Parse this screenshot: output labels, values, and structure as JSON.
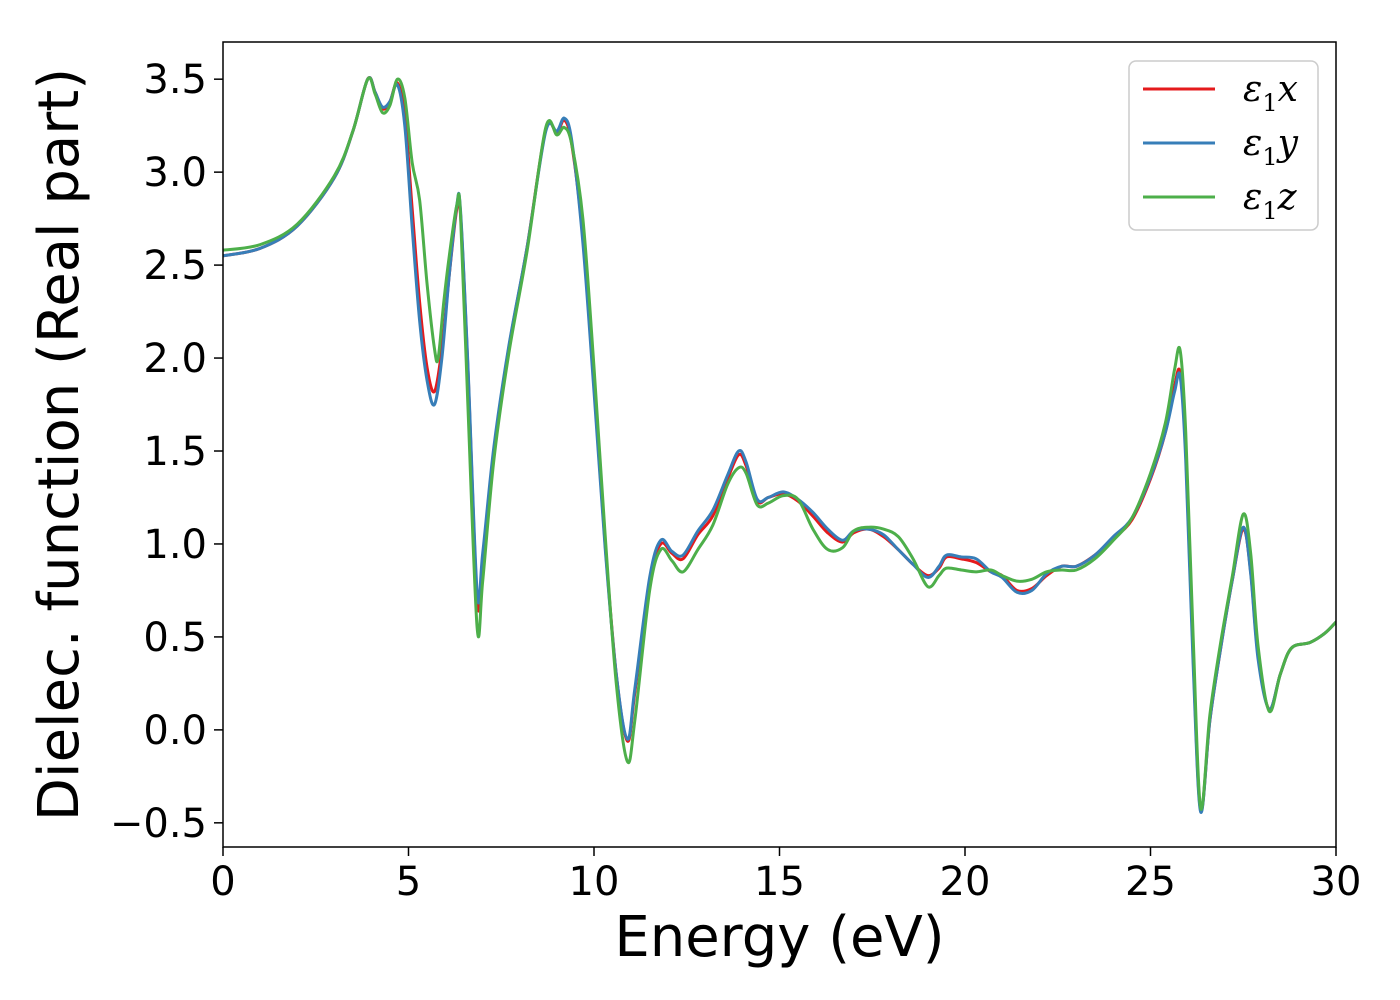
{
  "chart_data": {
    "type": "line",
    "xlabel": "Energy (eV)",
    "ylabel": "Dielec. function (Real part)",
    "xlim": [
      0,
      30
    ],
    "ylim": [
      -0.63,
      3.7
    ],
    "xticks": [
      0,
      5,
      10,
      15,
      20,
      25,
      30
    ],
    "xtick_labels": [
      "0",
      "5",
      "10",
      "15",
      "20",
      "25",
      "30"
    ],
    "yticks": [
      -0.5,
      0.0,
      0.5,
      1.0,
      1.5,
      2.0,
      2.5,
      3.0,
      3.5
    ],
    "ytick_labels": [
      "−0.5",
      "0.0",
      "0.5",
      "1.0",
      "1.5",
      "2.0",
      "2.5",
      "3.0",
      "3.5"
    ],
    "grid": false,
    "legend_position": "top-right",
    "series": [
      {
        "name": "ε1x",
        "legend_base": "ε",
        "legend_sub": "1",
        "legend_tail": "x",
        "color": "#e41a1c",
        "points": [
          [
            0,
            2.55
          ],
          [
            1,
            2.59
          ],
          [
            2,
            2.71
          ],
          [
            3,
            2.97
          ],
          [
            3.5,
            3.22
          ],
          [
            3.9,
            3.5
          ],
          [
            4.1,
            3.43
          ],
          [
            4.3,
            3.34
          ],
          [
            4.5,
            3.38
          ],
          [
            4.7,
            3.48
          ],
          [
            4.9,
            3.3
          ],
          [
            5.1,
            2.8
          ],
          [
            5.3,
            2.3
          ],
          [
            5.5,
            1.95
          ],
          [
            5.7,
            1.82
          ],
          [
            5.9,
            2.05
          ],
          [
            6.1,
            2.45
          ],
          [
            6.3,
            2.8
          ],
          [
            6.4,
            2.78
          ],
          [
            6.6,
            1.95
          ],
          [
            6.85,
            0.7
          ],
          [
            7.0,
            0.9
          ],
          [
            7.3,
            1.5
          ],
          [
            7.7,
            2.05
          ],
          [
            8.2,
            2.6
          ],
          [
            8.7,
            3.23
          ],
          [
            9.0,
            3.21
          ],
          [
            9.2,
            3.28
          ],
          [
            9.4,
            3.15
          ],
          [
            9.7,
            2.65
          ],
          [
            10.0,
            1.85
          ],
          [
            10.3,
            1.0
          ],
          [
            10.6,
            0.3
          ],
          [
            10.9,
            -0.06
          ],
          [
            11.1,
            0.2
          ],
          [
            11.5,
            0.8
          ],
          [
            11.8,
            1.0
          ],
          [
            12.1,
            0.95
          ],
          [
            12.4,
            0.92
          ],
          [
            12.8,
            1.05
          ],
          [
            13.2,
            1.15
          ],
          [
            13.6,
            1.35
          ],
          [
            13.9,
            1.48
          ],
          [
            14.1,
            1.42
          ],
          [
            14.4,
            1.23
          ],
          [
            14.7,
            1.25
          ],
          [
            15.1,
            1.27
          ],
          [
            15.5,
            1.23
          ],
          [
            15.9,
            1.15
          ],
          [
            16.3,
            1.06
          ],
          [
            16.7,
            1.01
          ],
          [
            17.0,
            1.06
          ],
          [
            17.4,
            1.08
          ],
          [
            17.8,
            1.04
          ],
          [
            18.2,
            0.97
          ],
          [
            18.6,
            0.89
          ],
          [
            19.0,
            0.83
          ],
          [
            19.3,
            0.87
          ],
          [
            19.5,
            0.93
          ],
          [
            19.9,
            0.92
          ],
          [
            20.3,
            0.9
          ],
          [
            20.7,
            0.85
          ],
          [
            21.0,
            0.83
          ],
          [
            21.4,
            0.75
          ],
          [
            21.8,
            0.76
          ],
          [
            22.2,
            0.83
          ],
          [
            22.6,
            0.88
          ],
          [
            23.0,
            0.88
          ],
          [
            23.5,
            0.94
          ],
          [
            24.0,
            1.03
          ],
          [
            24.5,
            1.13
          ],
          [
            25.0,
            1.35
          ],
          [
            25.4,
            1.6
          ],
          [
            25.65,
            1.85
          ],
          [
            25.8,
            1.92
          ],
          [
            25.95,
            1.5
          ],
          [
            26.15,
            0.4
          ],
          [
            26.35,
            -0.43
          ],
          [
            26.6,
            0.05
          ],
          [
            26.9,
            0.45
          ],
          [
            27.2,
            0.8
          ],
          [
            27.5,
            1.08
          ],
          [
            27.7,
            0.85
          ],
          [
            27.9,
            0.4
          ],
          [
            28.2,
            0.11
          ],
          [
            28.5,
            0.3
          ],
          [
            28.8,
            0.44
          ],
          [
            29.3,
            0.47
          ],
          [
            29.7,
            0.52
          ],
          [
            30,
            0.58
          ]
        ]
      },
      {
        "name": "ε1y",
        "legend_base": "ε",
        "legend_sub": "1",
        "legend_tail": "y",
        "color": "#377eb8",
        "points": [
          [
            0,
            2.55
          ],
          [
            1,
            2.59
          ],
          [
            2,
            2.71
          ],
          [
            3,
            2.97
          ],
          [
            3.5,
            3.22
          ],
          [
            3.9,
            3.5
          ],
          [
            4.1,
            3.43
          ],
          [
            4.3,
            3.35
          ],
          [
            4.5,
            3.38
          ],
          [
            4.7,
            3.47
          ],
          [
            4.9,
            3.25
          ],
          [
            5.1,
            2.7
          ],
          [
            5.3,
            2.2
          ],
          [
            5.5,
            1.88
          ],
          [
            5.7,
            1.75
          ],
          [
            5.9,
            2.0
          ],
          [
            6.1,
            2.45
          ],
          [
            6.3,
            2.82
          ],
          [
            6.4,
            2.8
          ],
          [
            6.6,
            1.97
          ],
          [
            6.85,
            0.74
          ],
          [
            7.0,
            0.95
          ],
          [
            7.3,
            1.52
          ],
          [
            7.7,
            2.06
          ],
          [
            8.2,
            2.6
          ],
          [
            8.7,
            3.22
          ],
          [
            9.0,
            3.22
          ],
          [
            9.2,
            3.29
          ],
          [
            9.4,
            3.17
          ],
          [
            9.7,
            2.62
          ],
          [
            10.0,
            1.82
          ],
          [
            10.3,
            0.98
          ],
          [
            10.6,
            0.3
          ],
          [
            10.9,
            -0.05
          ],
          [
            11.1,
            0.22
          ],
          [
            11.5,
            0.82
          ],
          [
            11.8,
            1.02
          ],
          [
            12.1,
            0.96
          ],
          [
            12.4,
            0.94
          ],
          [
            12.8,
            1.07
          ],
          [
            13.2,
            1.18
          ],
          [
            13.6,
            1.37
          ],
          [
            13.9,
            1.5
          ],
          [
            14.1,
            1.44
          ],
          [
            14.4,
            1.24
          ],
          [
            14.7,
            1.25
          ],
          [
            15.1,
            1.28
          ],
          [
            15.5,
            1.24
          ],
          [
            15.9,
            1.17
          ],
          [
            16.3,
            1.08
          ],
          [
            16.7,
            1.02
          ],
          [
            17.0,
            1.07
          ],
          [
            17.4,
            1.08
          ],
          [
            17.8,
            1.05
          ],
          [
            18.2,
            0.97
          ],
          [
            18.6,
            0.89
          ],
          [
            19.0,
            0.82
          ],
          [
            19.3,
            0.88
          ],
          [
            19.5,
            0.94
          ],
          [
            19.9,
            0.93
          ],
          [
            20.3,
            0.92
          ],
          [
            20.7,
            0.85
          ],
          [
            21.0,
            0.82
          ],
          [
            21.4,
            0.74
          ],
          [
            21.8,
            0.75
          ],
          [
            22.2,
            0.84
          ],
          [
            22.6,
            0.88
          ],
          [
            23.0,
            0.88
          ],
          [
            23.5,
            0.94
          ],
          [
            24.0,
            1.04
          ],
          [
            24.5,
            1.14
          ],
          [
            25.0,
            1.36
          ],
          [
            25.4,
            1.6
          ],
          [
            25.65,
            1.82
          ],
          [
            25.8,
            1.9
          ],
          [
            25.95,
            1.45
          ],
          [
            26.15,
            0.35
          ],
          [
            26.35,
            -0.44
          ],
          [
            26.6,
            0.05
          ],
          [
            26.9,
            0.45
          ],
          [
            27.2,
            0.8
          ],
          [
            27.5,
            1.09
          ],
          [
            27.7,
            0.84
          ],
          [
            27.9,
            0.38
          ],
          [
            28.2,
            0.11
          ],
          [
            28.5,
            0.3
          ],
          [
            28.8,
            0.44
          ],
          [
            29.3,
            0.47
          ],
          [
            29.7,
            0.52
          ],
          [
            30,
            0.58
          ]
        ]
      },
      {
        "name": "ε1z",
        "legend_base": "ε",
        "legend_sub": "1",
        "legend_tail": "z",
        "color": "#4daf4a",
        "points": [
          [
            0,
            2.58
          ],
          [
            1,
            2.61
          ],
          [
            2,
            2.72
          ],
          [
            3,
            2.98
          ],
          [
            3.5,
            3.22
          ],
          [
            3.9,
            3.5
          ],
          [
            4.1,
            3.42
          ],
          [
            4.3,
            3.32
          ],
          [
            4.5,
            3.36
          ],
          [
            4.7,
            3.5
          ],
          [
            4.9,
            3.4
          ],
          [
            5.1,
            3.05
          ],
          [
            5.3,
            2.85
          ],
          [
            5.5,
            2.4
          ],
          [
            5.7,
            2.05
          ],
          [
            5.8,
            2.0
          ],
          [
            5.95,
            2.3
          ],
          [
            6.1,
            2.55
          ],
          [
            6.3,
            2.82
          ],
          [
            6.4,
            2.78
          ],
          [
            6.6,
            1.75
          ],
          [
            6.85,
            0.55
          ],
          [
            7.0,
            0.8
          ],
          [
            7.3,
            1.45
          ],
          [
            7.7,
            2.02
          ],
          [
            8.2,
            2.58
          ],
          [
            8.7,
            3.24
          ],
          [
            9.0,
            3.2
          ],
          [
            9.2,
            3.24
          ],
          [
            9.4,
            3.15
          ],
          [
            9.7,
            2.75
          ],
          [
            10.0,
            1.95
          ],
          [
            10.3,
            1.05
          ],
          [
            10.6,
            0.25
          ],
          [
            10.9,
            -0.17
          ],
          [
            11.1,
            0.05
          ],
          [
            11.5,
            0.75
          ],
          [
            11.8,
            0.97
          ],
          [
            12.1,
            0.91
          ],
          [
            12.4,
            0.85
          ],
          [
            12.8,
            0.97
          ],
          [
            13.2,
            1.1
          ],
          [
            13.6,
            1.32
          ],
          [
            13.9,
            1.41
          ],
          [
            14.1,
            1.38
          ],
          [
            14.4,
            1.21
          ],
          [
            14.7,
            1.22
          ],
          [
            15.1,
            1.26
          ],
          [
            15.5,
            1.24
          ],
          [
            15.9,
            1.08
          ],
          [
            16.3,
            0.97
          ],
          [
            16.7,
            0.98
          ],
          [
            17.0,
            1.07
          ],
          [
            17.4,
            1.09
          ],
          [
            17.8,
            1.08
          ],
          [
            18.2,
            1.04
          ],
          [
            18.6,
            0.92
          ],
          [
            19.0,
            0.77
          ],
          [
            19.3,
            0.83
          ],
          [
            19.5,
            0.87
          ],
          [
            19.9,
            0.86
          ],
          [
            20.3,
            0.85
          ],
          [
            20.7,
            0.86
          ],
          [
            21.0,
            0.83
          ],
          [
            21.4,
            0.8
          ],
          [
            21.8,
            0.81
          ],
          [
            22.2,
            0.85
          ],
          [
            22.6,
            0.86
          ],
          [
            23.0,
            0.86
          ],
          [
            23.5,
            0.92
          ],
          [
            24.0,
            1.02
          ],
          [
            24.5,
            1.14
          ],
          [
            25.0,
            1.38
          ],
          [
            25.4,
            1.65
          ],
          [
            25.65,
            1.94
          ],
          [
            25.8,
            2.04
          ],
          [
            25.95,
            1.6
          ],
          [
            26.15,
            0.5
          ],
          [
            26.35,
            -0.42
          ],
          [
            26.6,
            0.08
          ],
          [
            26.9,
            0.48
          ],
          [
            27.2,
            0.82
          ],
          [
            27.5,
            1.16
          ],
          [
            27.7,
            0.95
          ],
          [
            27.9,
            0.45
          ],
          [
            28.2,
            0.1
          ],
          [
            28.5,
            0.3
          ],
          [
            28.8,
            0.44
          ],
          [
            29.3,
            0.47
          ],
          [
            29.7,
            0.52
          ],
          [
            30,
            0.58
          ]
        ]
      }
    ]
  }
}
